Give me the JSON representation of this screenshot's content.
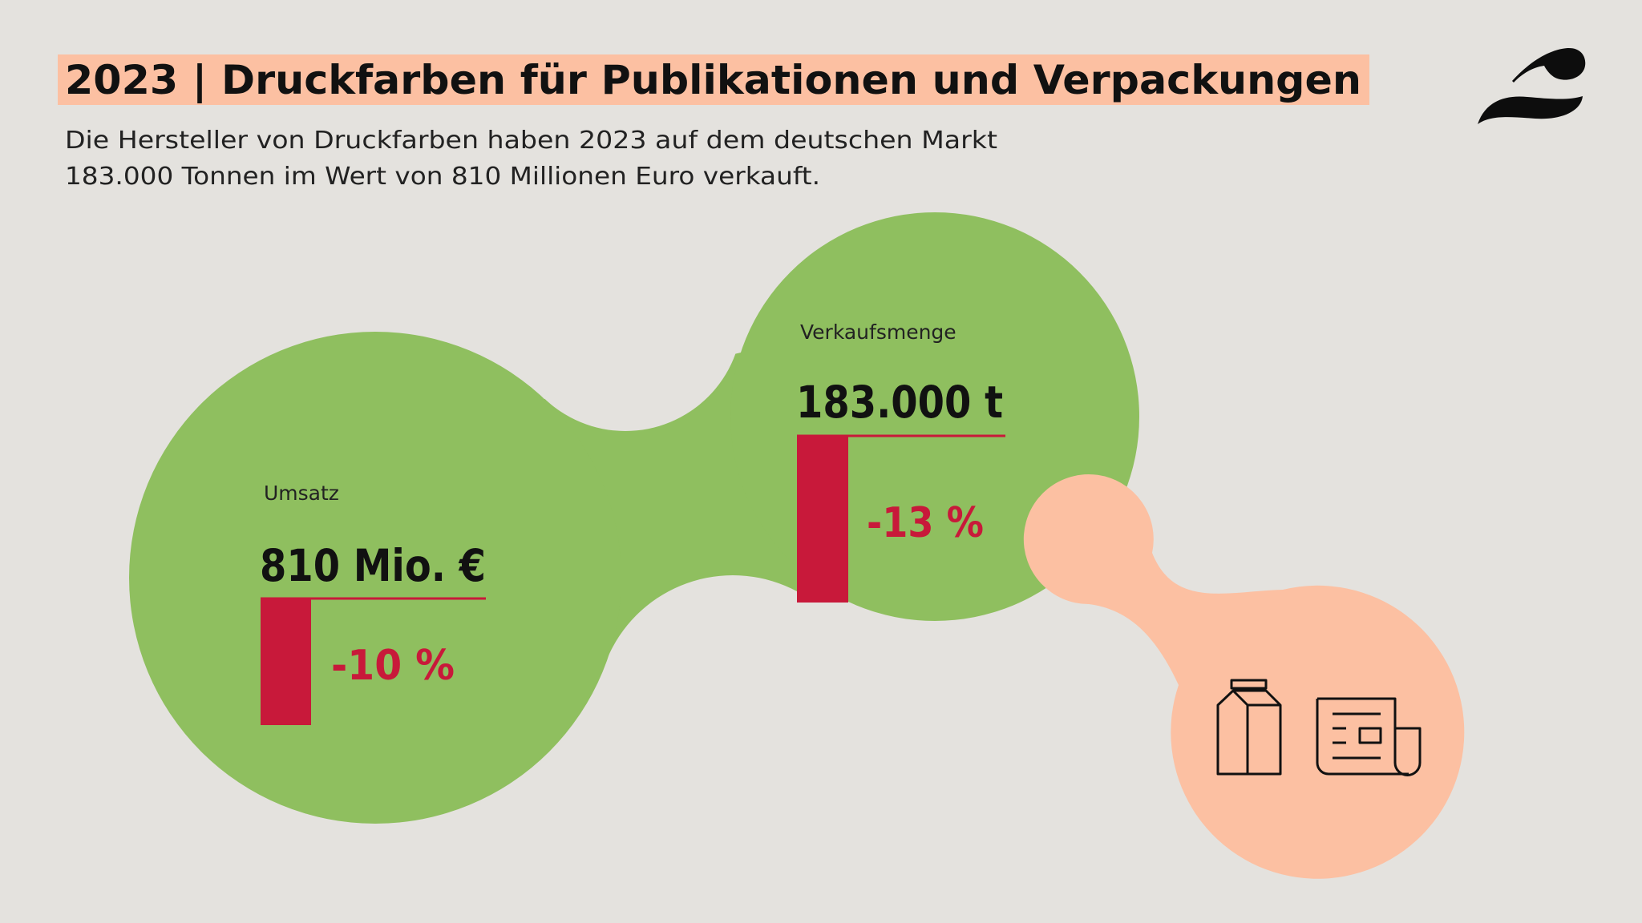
{
  "header": {
    "title": "2023 | Druckfarben für Publikationen und Verpackungen",
    "subtitle_line1": "Die Hersteller von Druckfarben haben 2023 auf dem deutschen Markt",
    "subtitle_line2": "183.000 Tonnen im Wert von 810 Millionen Euro verkauft."
  },
  "logo": {
    "icon": "brand-logo-swash"
  },
  "metrics": {
    "revenue": {
      "label": "Umsatz",
      "value": "810 Mio. €",
      "change": "-10 %",
      "change_percent": -10
    },
    "volume": {
      "label": "Verkaufsmenge",
      "value": "183.000 t",
      "change": "-13 %",
      "change_percent": -13
    }
  },
  "icons": [
    "milk-carton-icon",
    "newspaper-icon"
  ],
  "colors": {
    "background": "#e4e2de",
    "green": "#8fbf5f",
    "peach": "#fcc0a2",
    "red": "#c8193a",
    "title_highlight": "#fcc0a2",
    "text": "#111111"
  }
}
